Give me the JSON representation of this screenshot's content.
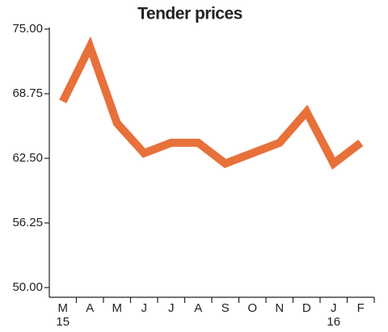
{
  "chart_data": {
    "type": "line",
    "title": "Tender prices",
    "categories": [
      "M",
      "A",
      "M",
      "J",
      "J",
      "A",
      "S",
      "O",
      "N",
      "D",
      "J",
      "F"
    ],
    "x_sublabels": [
      "15",
      null,
      null,
      null,
      null,
      null,
      null,
      null,
      null,
      null,
      "16",
      null
    ],
    "values": [
      68,
      73.3,
      65.9,
      63,
      64,
      64,
      62,
      63,
      64,
      67,
      62,
      64
    ],
    "color": "#e8703a",
    "ylim": [
      50,
      75
    ],
    "yticks": [
      {
        "value": 50,
        "label": "50.00"
      },
      {
        "value": 56.25,
        "label": "56.25"
      },
      {
        "value": 62.5,
        "label": "62.50"
      },
      {
        "value": 68.75,
        "label": "68.75"
      },
      {
        "value": 75,
        "label": "75.00"
      }
    ]
  }
}
